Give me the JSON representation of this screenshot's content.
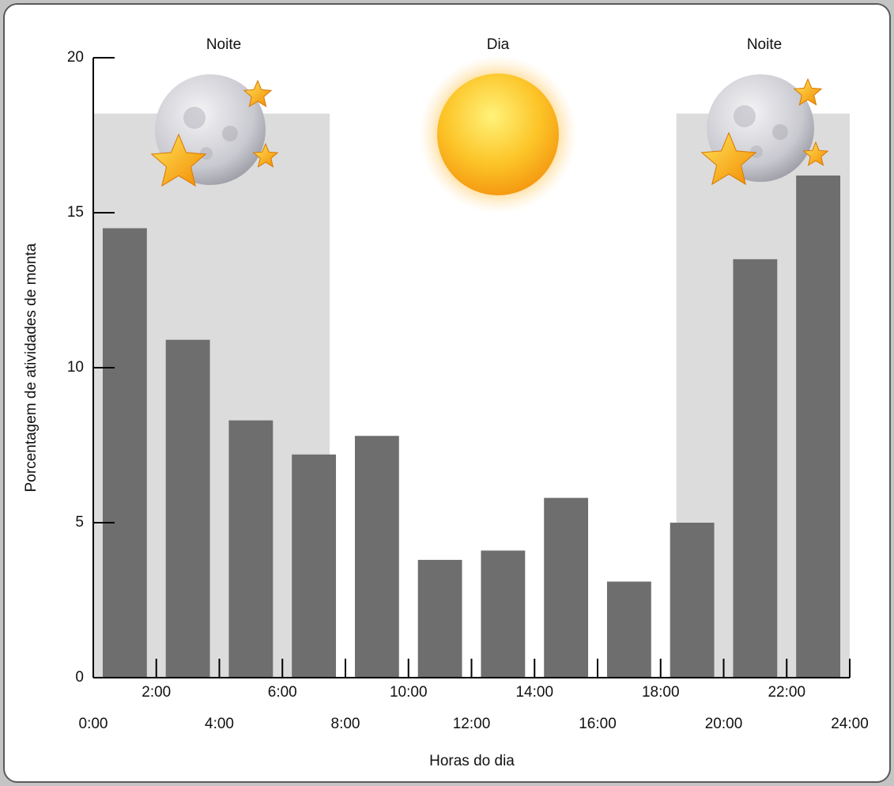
{
  "chart_data": {
    "type": "bar",
    "x_label": "Horas do dia",
    "y_label": "Porcentagem de atividades de monta",
    "x": [
      1,
      3,
      5,
      7,
      9,
      11,
      13,
      15,
      17,
      19,
      21,
      23
    ],
    "values": [
      14.5,
      10.9,
      8.3,
      7.2,
      7.8,
      3.8,
      4.1,
      5.8,
      3.1,
      5.0,
      13.5,
      16.2
    ],
    "color": "#6e6e6e",
    "xlim": [
      0,
      24
    ],
    "ylim": [
      0,
      20
    ],
    "yticks": [
      0,
      5,
      10,
      15,
      20
    ],
    "xticks": [
      {
        "value": 0,
        "label": "0:00"
      },
      {
        "value": 2,
        "label": "2:00"
      },
      {
        "value": 4,
        "label": "4:00"
      },
      {
        "value": 6,
        "label": "6:00"
      },
      {
        "value": 8,
        "label": "8:00"
      },
      {
        "value": 10,
        "label": "10:00"
      },
      {
        "value": 12,
        "label": "12:00"
      },
      {
        "value": 14,
        "label": "14:00"
      },
      {
        "value": 16,
        "label": "16:00"
      },
      {
        "value": 18,
        "label": "18:00"
      },
      {
        "value": 20,
        "label": "20:00"
      },
      {
        "value": 22,
        "label": "22:00"
      },
      {
        "value": 24,
        "label": "24:00"
      }
    ],
    "shaded_regions": [
      {
        "xlim": [
          0,
          7.5
        ],
        "top": 18.2
      },
      {
        "xlim": [
          18.5,
          24
        ],
        "top": 18.2
      }
    ],
    "shade_color": "#dcdcdc",
    "annotations": [
      "Noite",
      "Dia",
      "Noite"
    ]
  }
}
